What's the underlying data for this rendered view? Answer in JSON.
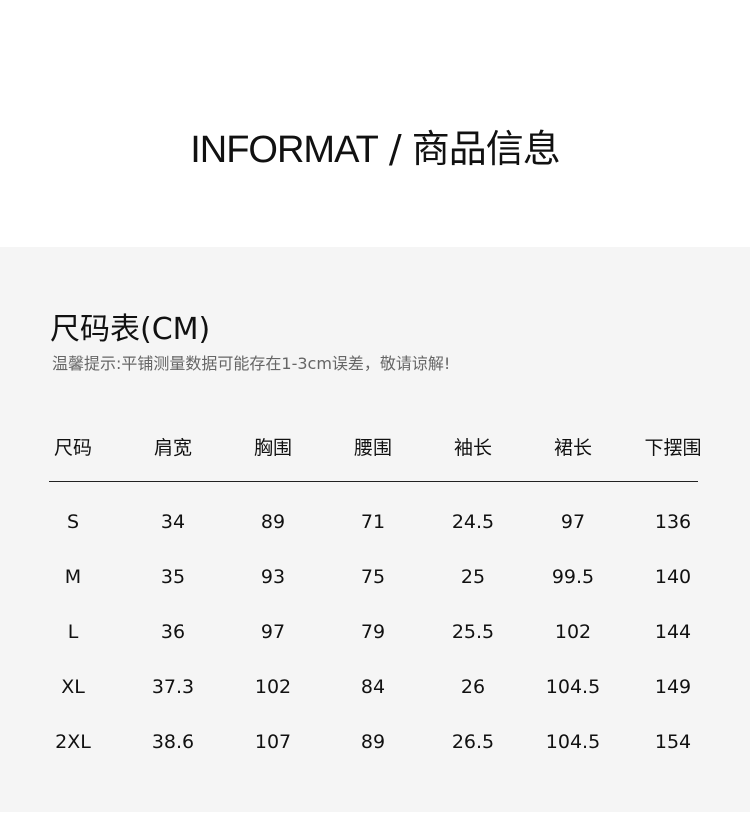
{
  "header": {
    "title_en": "INFORMAT",
    "separator": " / ",
    "title_cn": "商品信息"
  },
  "section": {
    "title": "尺码表(CM)",
    "tip": "温馨提示:平铺测量数据可能存在1-3cm误差，敬请谅解!"
  },
  "table": {
    "columns": [
      "尺码",
      "肩宽",
      "胸围",
      "腰围",
      "袖长",
      "裙长",
      "下摆围"
    ],
    "rows": [
      [
        "S",
        "34",
        "89",
        "71",
        "24.5",
        "97",
        "136"
      ],
      [
        "M",
        "35",
        "93",
        "75",
        "25",
        "99.5",
        "140"
      ],
      [
        "L",
        "36",
        "97",
        "79",
        "25.5",
        "102",
        "144"
      ],
      [
        "XL",
        "37.3",
        "102",
        "84",
        "26",
        "104.5",
        "149"
      ],
      [
        "2XL",
        "38.6",
        "107",
        "89",
        "26.5",
        "104.5",
        "154"
      ]
    ]
  }
}
